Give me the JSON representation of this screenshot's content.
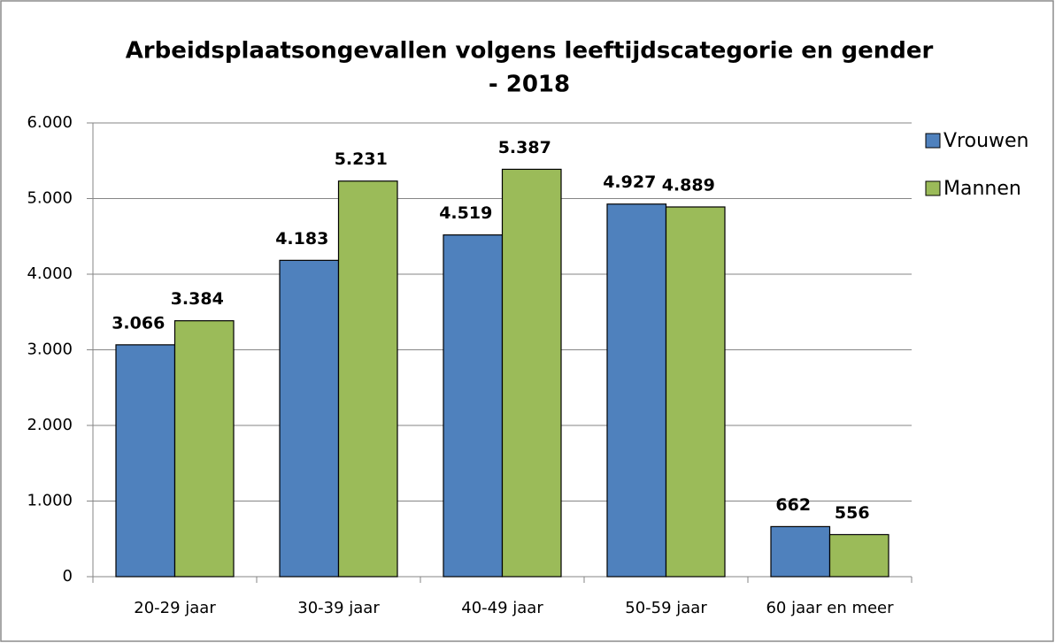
{
  "chart_data": {
    "type": "bar",
    "title": [
      "Arbeidsplaatsongevallen volgens leeftijdscategorie en gender",
      "- 2018"
    ],
    "categories": [
      "20-29 jaar",
      "30-39 jaar",
      "40-49 jaar",
      "50-59 jaar",
      "60 jaar en meer"
    ],
    "series": [
      {
        "name": "Vrouwen",
        "color": "#4f81bd",
        "values": [
          3066,
          4183,
          4519,
          4927,
          662
        ],
        "value_labels": [
          "3.066",
          "4.183",
          "4.519",
          "4.927",
          "662"
        ]
      },
      {
        "name": "Mannen",
        "color": "#9bbb59",
        "values": [
          3384,
          5231,
          5387,
          4889,
          556
        ],
        "value_labels": [
          "3.384",
          "5.231",
          "5.387",
          "4.889",
          "556"
        ]
      }
    ],
    "ylim": [
      0,
      6000
    ],
    "yticks": [
      0,
      {
        "value": 1000,
        "label": "1.000"
      },
      {
        "value": 2000,
        "label": "2.000"
      },
      {
        "value": 3000,
        "label": "3.000"
      },
      {
        "value": 4000,
        "label": "4.000"
      },
      {
        "value": 5000,
        "label": "5.000"
      },
      {
        "value": 6000,
        "label": "6.000"
      }
    ],
    "grid": true,
    "legend": "right"
  }
}
